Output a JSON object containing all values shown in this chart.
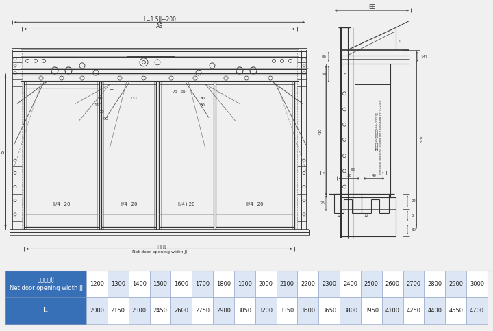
{
  "bg_color": "#f0f0f0",
  "drawing_bg": "#f0f0f0",
  "table_header_bg": "#3870b8",
  "table_header_text": "#ffffff",
  "table_row_even_bg": "#ffffff",
  "table_row_odd_bg": "#dce6f5",
  "table_border": "#aaaacc",
  "lc": "#333333",
  "dc": "#333333",
  "table_header_row1": [
    "净开门宽JJ\nNet door opening width JJ",
    "1200",
    "1300",
    "1400",
    "1500",
    "1600",
    "1700",
    "1800",
    "1900",
    "2000",
    "2100",
    "2200",
    "2300",
    "2400",
    "2500",
    "2600",
    "2700",
    "2800",
    "2900",
    "3000"
  ],
  "table_header_row2": [
    "L",
    "2000",
    "2150",
    "2300",
    "2450",
    "2600",
    "2750",
    "2900",
    "3050",
    "3200",
    "3350",
    "3500",
    "3650",
    "3800",
    "3950",
    "4100",
    "4250",
    "4400",
    "4550",
    "4700"
  ]
}
